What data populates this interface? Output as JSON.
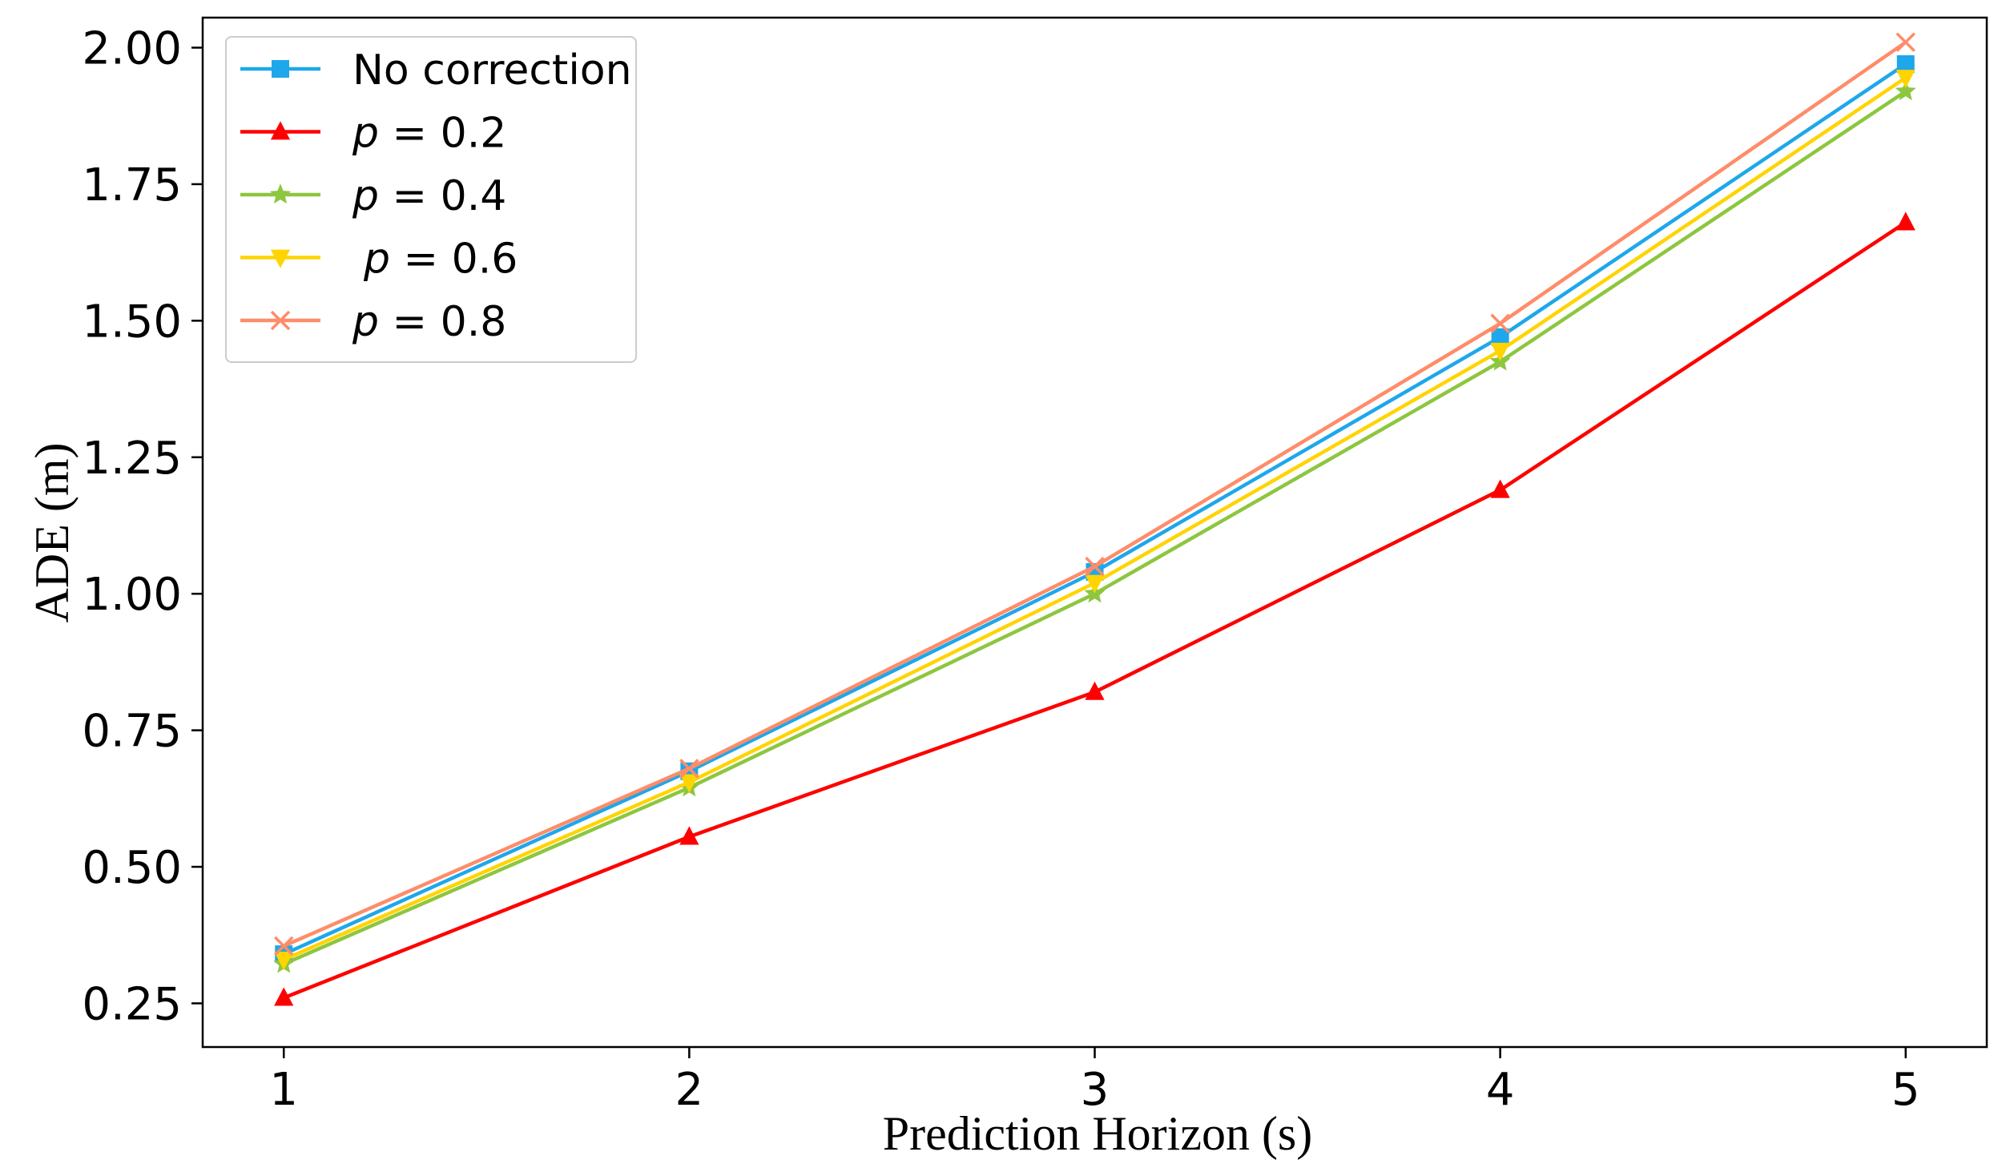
{
  "chart_data": {
    "type": "line",
    "title": "",
    "xlabel": "Prediction Horizon (s)",
    "ylabel": "ADE (m)",
    "x": [
      1,
      2,
      3,
      4,
      5
    ],
    "xticks": [
      "1",
      "2",
      "3",
      "4",
      "5"
    ],
    "yticks": [
      "0.25",
      "0.50",
      "0.75",
      "1.00",
      "1.25",
      "1.50",
      "1.75",
      "2.00"
    ],
    "xlim": [
      0.8,
      5.2
    ],
    "ylim": [
      0.17,
      2.055
    ],
    "grid": false,
    "legend_position": "top-left",
    "series": [
      {
        "name": "No correction",
        "legend_prefix": "",
        "legend_value": "",
        "marker": "square",
        "color": "#1ea7ea",
        "values": [
          0.34,
          0.675,
          1.04,
          1.47,
          1.97
        ]
      },
      {
        "name": "p = 0.2",
        "legend_prefix": "p",
        "legend_value": " = 0.2",
        "marker": "triangle-up",
        "color": "#ff0000",
        "values": [
          0.26,
          0.555,
          0.82,
          1.19,
          1.68
        ]
      },
      {
        "name": "p = 0.4",
        "legend_prefix": "p",
        "legend_value": " = 0.4",
        "marker": "star",
        "color": "#8dc63f",
        "values": [
          0.322,
          0.645,
          1.0,
          1.425,
          1.92
        ]
      },
      {
        "name": "p = 0.6",
        "legend_prefix": "p",
        "legend_value": " = 0.6",
        "marker": "triangle-down",
        "color": "#ffd400",
        "values": [
          0.33,
          0.655,
          1.02,
          1.445,
          1.945
        ]
      },
      {
        "name": "p = 0.8",
        "legend_prefix": "p",
        "legend_value": " = 0.8",
        "marker": "x",
        "color": "#ff8c69",
        "values": [
          0.355,
          0.68,
          1.05,
          1.495,
          2.01
        ]
      }
    ]
  }
}
